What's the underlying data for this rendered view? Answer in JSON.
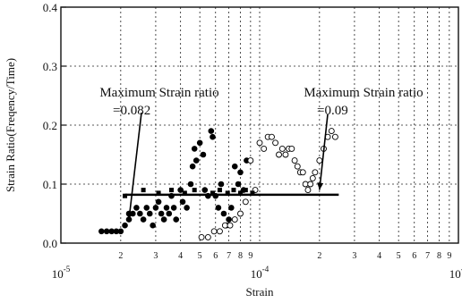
{
  "chart_data": {
    "type": "scatter",
    "title": "",
    "xlabel": "Strain",
    "ylabel": "Strain Ratio(Freqency/Time)",
    "x_scale": "log",
    "xlim": [
      1e-05,
      0.001
    ],
    "ylim": [
      0.0,
      0.4
    ],
    "grid": true,
    "x_ticks_major": [
      {
        "value": 1e-05,
        "label": "10",
        "exp": "-5"
      },
      {
        "value": 0.0001,
        "label": "10",
        "exp": "-4"
      },
      {
        "value": 0.001,
        "label": "10",
        "exp": "-3"
      }
    ],
    "x_ticks_minor": [
      {
        "value": 2e-05,
        "label": "2"
      },
      {
        "value": 3e-05,
        "label": "3"
      },
      {
        "value": 4e-05,
        "label": "4"
      },
      {
        "value": 5e-05,
        "label": "5"
      },
      {
        "value": 6e-05,
        "label": "6"
      },
      {
        "value": 7e-05,
        "label": "7"
      },
      {
        "value": 8e-05,
        "label": "8"
      },
      {
        "value": 9e-05,
        "label": "9"
      },
      {
        "value": 0.0002,
        "label": "2"
      },
      {
        "value": 0.0003,
        "label": "3"
      },
      {
        "value": 0.0004,
        "label": "4"
      },
      {
        "value": 0.0005,
        "label": "5"
      },
      {
        "value": 0.0006,
        "label": "6"
      },
      {
        "value": 0.0007,
        "label": "7"
      },
      {
        "value": 0.0008,
        "label": "8"
      },
      {
        "value": 0.0009,
        "label": "9"
      }
    ],
    "y_ticks": [
      {
        "value": 0.0,
        "label": "0.0"
      },
      {
        "value": 0.1,
        "label": "0.1"
      },
      {
        "value": 0.2,
        "label": "0.2"
      },
      {
        "value": 0.3,
        "label": "0.3"
      },
      {
        "value": 0.4,
        "label": "0.4"
      }
    ],
    "series": [
      {
        "marker": "filled-circle",
        "points": [
          [
            1.6e-05,
            0.02
          ],
          [
            1.7e-05,
            0.02
          ],
          [
            1.8e-05,
            0.02
          ],
          [
            1.9e-05,
            0.02
          ],
          [
            2e-05,
            0.02
          ],
          [
            2.1e-05,
            0.03
          ],
          [
            2.2e-05,
            0.04
          ],
          [
            2.2e-05,
            0.05
          ],
          [
            2.3e-05,
            0.05
          ],
          [
            2.4e-05,
            0.06
          ],
          [
            2.5e-05,
            0.05
          ],
          [
            2.6e-05,
            0.04
          ],
          [
            2.7e-05,
            0.06
          ],
          [
            2.8e-05,
            0.05
          ],
          [
            2.9e-05,
            0.03
          ],
          [
            3e-05,
            0.06
          ],
          [
            3.1e-05,
            0.07
          ],
          [
            3.2e-05,
            0.05
          ],
          [
            3.3e-05,
            0.04
          ],
          [
            3.4e-05,
            0.06
          ],
          [
            3.5e-05,
            0.05
          ],
          [
            3.6e-05,
            0.08
          ],
          [
            3.7e-05,
            0.06
          ],
          [
            3.8e-05,
            0.04
          ],
          [
            4e-05,
            0.09
          ],
          [
            4.1e-05,
            0.07
          ],
          [
            4.3e-05,
            0.06
          ],
          [
            4.5e-05,
            0.1
          ],
          [
            4.6e-05,
            0.13
          ],
          [
            4.7e-05,
            0.16
          ],
          [
            4.8e-05,
            0.14
          ],
          [
            5e-05,
            0.17
          ],
          [
            5.2e-05,
            0.15
          ],
          [
            5.3e-05,
            0.09
          ],
          [
            5.5e-05,
            0.08
          ],
          [
            5.7e-05,
            0.19
          ],
          [
            5.8e-05,
            0.18
          ],
          [
            6e-05,
            0.08
          ],
          [
            6.2e-05,
            0.06
          ],
          [
            6.4e-05,
            0.1
          ],
          [
            6.6e-05,
            0.05
          ],
          [
            6.8e-05,
            0.03
          ],
          [
            7e-05,
            0.04
          ],
          [
            7.2e-05,
            0.06
          ],
          [
            7.5e-05,
            0.13
          ],
          [
            7.8e-05,
            0.1
          ],
          [
            8e-05,
            0.12
          ],
          [
            8.3e-05,
            0.09
          ],
          [
            8.6e-05,
            0.14
          ]
        ]
      },
      {
        "marker": "open-circle",
        "points": [
          [
            5.1e-05,
            0.01
          ],
          [
            5.5e-05,
            0.01
          ],
          [
            5.9e-05,
            0.02
          ],
          [
            6.3e-05,
            0.02
          ],
          [
            6.7e-05,
            0.03
          ],
          [
            7.1e-05,
            0.03
          ],
          [
            7.5e-05,
            0.04
          ],
          [
            8e-05,
            0.05
          ],
          [
            8.5e-05,
            0.07
          ],
          [
            9e-05,
            0.14
          ],
          [
            9.5e-05,
            0.09
          ],
          [
            0.0001,
            0.17
          ],
          [
            0.000105,
            0.16
          ],
          [
            0.00011,
            0.18
          ],
          [
            0.000115,
            0.18
          ],
          [
            0.00012,
            0.17
          ],
          [
            0.000125,
            0.15
          ],
          [
            0.00013,
            0.16
          ],
          [
            0.000135,
            0.15
          ],
          [
            0.00014,
            0.16
          ],
          [
            0.000145,
            0.16
          ],
          [
            0.00015,
            0.14
          ],
          [
            0.000155,
            0.13
          ],
          [
            0.00016,
            0.12
          ],
          [
            0.000165,
            0.12
          ],
          [
            0.00017,
            0.1
          ],
          [
            0.000175,
            0.09
          ],
          [
            0.00018,
            0.1
          ],
          [
            0.000185,
            0.11
          ],
          [
            0.00019,
            0.12
          ],
          [
            0.0002,
            0.14
          ],
          [
            0.00021,
            0.16
          ],
          [
            0.00022,
            0.18
          ],
          [
            0.00023,
            0.19
          ],
          [
            0.00024,
            0.18
          ]
        ]
      },
      {
        "marker": "filled-square",
        "points": [
          [
            2.1e-05,
            0.08
          ],
          [
            2.6e-05,
            0.09
          ],
          [
            3.1e-05,
            0.085
          ],
          [
            3.6e-05,
            0.09
          ],
          [
            4.2e-05,
            0.085
          ],
          [
            4.7e-05,
            0.09
          ],
          [
            5.8e-05,
            0.085
          ],
          [
            6.3e-05,
            0.09
          ],
          [
            6.9e-05,
            0.085
          ],
          [
            7.4e-05,
            0.09
          ],
          [
            8e-05,
            0.085
          ],
          [
            8.5e-05,
            0.09
          ],
          [
            9.2e-05,
            0.085
          ]
        ]
      }
    ],
    "annotations": [
      {
        "text": "Maximum Strain ratio",
        "value_text": "=0.082",
        "arrow_to": [
          2.2e-05,
          0.04
        ]
      },
      {
        "text": "Maximum Strain ratio",
        "value_text": "=0.09",
        "arrow_to": [
          0.0002,
          0.09
        ]
      }
    ],
    "reference_lines": [
      {
        "y": 0.082,
        "x_from": 2.1e-05,
        "x_to": 0.00025
      }
    ]
  }
}
